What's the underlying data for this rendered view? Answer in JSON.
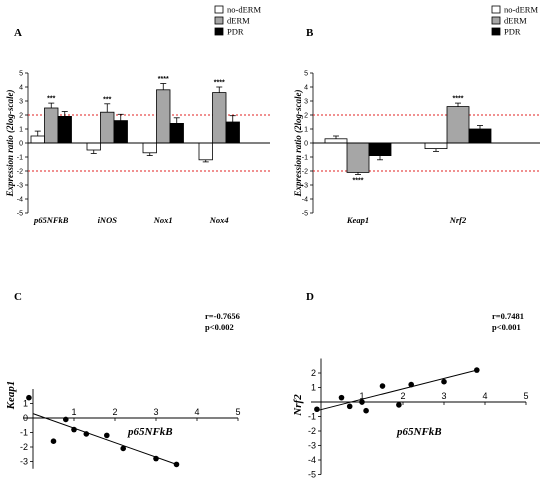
{
  "legend": [
    "no-dERM",
    "dERM",
    "PDR"
  ],
  "colors": {
    "no-dERM": "#ffffff",
    "dERM": "#a6a6a6",
    "PDR": "#000000",
    "ref_line": "#e02020"
  },
  "chart_data": [
    {
      "panel": "A",
      "type": "bar",
      "ylabel": "Expression ratio (2log-scale)",
      "ylim": [
        -5,
        5
      ],
      "reference_lines": [
        2,
        -2
      ],
      "categories": [
        "p65NFkB",
        "iNOS",
        "Nox1",
        "Nox4"
      ],
      "series": [
        {
          "name": "no-dERM",
          "values": [
            0.5,
            -0.5,
            -0.7,
            -1.2
          ],
          "errors": [
            0.35,
            0.25,
            0.2,
            0.15
          ]
        },
        {
          "name": "dERM",
          "values": [
            2.5,
            2.2,
            3.8,
            3.6
          ],
          "errors": [
            0.35,
            0.6,
            0.45,
            0.4
          ]
        },
        {
          "name": "PDR",
          "values": [
            1.9,
            1.6,
            1.4,
            1.5
          ],
          "errors": [
            0.35,
            0.45,
            0.4,
            0.45
          ]
        }
      ],
      "annotations": [
        {
          "category": "p65NFkB",
          "series": "dERM",
          "text": "***"
        },
        {
          "category": "iNOS",
          "series": "dERM",
          "text": "***"
        },
        {
          "category": "Nox1",
          "series": "dERM",
          "text": "****"
        },
        {
          "category": "Nox4",
          "series": "dERM",
          "text": "****"
        }
      ]
    },
    {
      "panel": "B",
      "type": "bar",
      "ylabel": "Expression ratio (2log-scale)",
      "ylim": [
        -5,
        5
      ],
      "reference_lines": [
        2,
        -2
      ],
      "categories": [
        "Keap1",
        "Nrf2"
      ],
      "series": [
        {
          "name": "no-dERM",
          "values": [
            0.3,
            -0.4
          ],
          "errors": [
            0.2,
            0.2
          ]
        },
        {
          "name": "dERM",
          "values": [
            -2.1,
            2.6
          ],
          "errors": [
            0.15,
            0.25
          ]
        },
        {
          "name": "PDR",
          "values": [
            -0.9,
            1.0
          ],
          "errors": [
            0.3,
            0.25
          ]
        }
      ],
      "annotations": [
        {
          "category": "Keap1",
          "series": "dERM",
          "text": "****",
          "position": "below"
        },
        {
          "category": "Nrf2",
          "series": "dERM",
          "text": "****",
          "position": "above"
        }
      ]
    },
    {
      "panel": "C",
      "type": "scatter",
      "xlabel": "p65NFkB",
      "ylabel": "Keap1",
      "xlim": [
        0,
        5
      ],
      "ylim": [
        -3.5,
        2
      ],
      "xticks": [
        1,
        2,
        3,
        4,
        5
      ],
      "yticks": [
        -3,
        -2,
        -1,
        0,
        1
      ],
      "stats": [
        "r=-0.7656",
        "p<0.002"
      ],
      "points": [
        {
          "x": -0.1,
          "y": 1.4
        },
        {
          "x": 0.5,
          "y": -1.6
        },
        {
          "x": 0.8,
          "y": -0.1
        },
        {
          "x": 1.0,
          "y": -0.8
        },
        {
          "x": 1.3,
          "y": -1.1
        },
        {
          "x": 1.8,
          "y": -1.2
        },
        {
          "x": 2.2,
          "y": -2.1
        },
        {
          "x": 3.0,
          "y": -2.8
        },
        {
          "x": 3.5,
          "y": -3.2
        }
      ],
      "trendline": [
        {
          "x": 0.0,
          "y": 0.3
        },
        {
          "x": 3.5,
          "y": -3.2
        }
      ]
    },
    {
      "panel": "D",
      "type": "scatter",
      "xlabel": "p65NFkB",
      "ylabel": "Nrf2",
      "xlim": [
        0,
        5
      ],
      "ylim": [
        -5,
        3
      ],
      "xticks": [
        1,
        2,
        3,
        4,
        5
      ],
      "yticks": [
        -5,
        -4,
        -3,
        -2,
        -1,
        1,
        2
      ],
      "stats": [
        "r=0.7481",
        "p<0.001"
      ],
      "points": [
        {
          "x": -0.1,
          "y": -0.5
        },
        {
          "x": 0.5,
          "y": 0.3
        },
        {
          "x": 0.7,
          "y": -0.3
        },
        {
          "x": 1.0,
          "y": 0.0
        },
        {
          "x": 1.1,
          "y": -0.6
        },
        {
          "x": 1.5,
          "y": 1.1
        },
        {
          "x": 1.9,
          "y": -0.2
        },
        {
          "x": 2.2,
          "y": 1.2
        },
        {
          "x": 3.0,
          "y": 1.4
        },
        {
          "x": 3.8,
          "y": 2.2
        }
      ],
      "trendline": [
        {
          "x": -0.1,
          "y": -0.6
        },
        {
          "x": 3.8,
          "y": 2.2
        }
      ]
    }
  ]
}
